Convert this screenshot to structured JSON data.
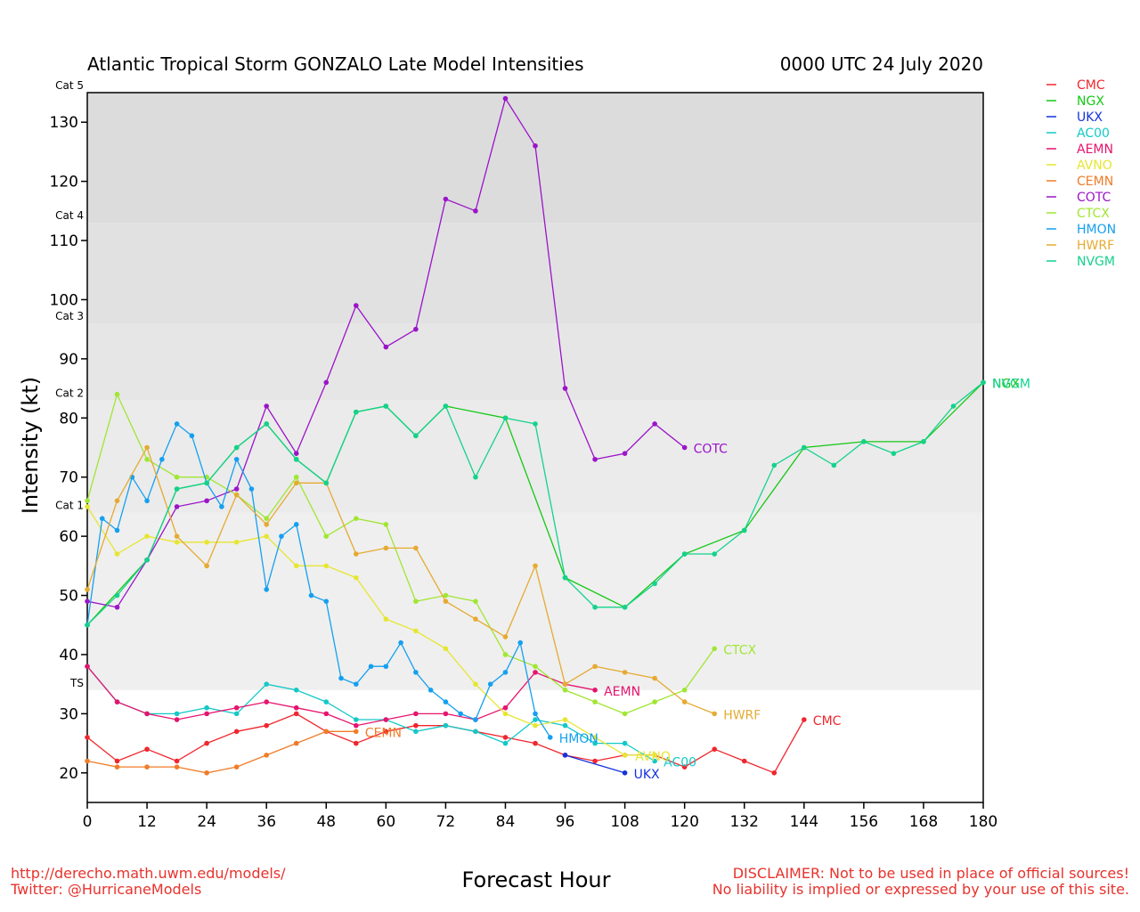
{
  "title_left": "Atlantic Tropical Storm GONZALO Late Model Intensities",
  "title_right": "0000 UTC 24 July 2020",
  "footer": {
    "left_line1": "http://derecho.math.uwm.edu/models/",
    "left_line2": "Twitter: @HurricaneModels",
    "right_line1": "DISCLAIMER: Not to be used in place of official sources!",
    "right_line2": "No liability is implied or expressed by your use of this site."
  },
  "chart_data": {
    "type": "line",
    "xlabel": "Forecast Hour",
    "ylabel": "Intensity (kt)",
    "xlim": [
      0,
      180
    ],
    "ylim": [
      15,
      135
    ],
    "xticks": [
      0,
      12,
      24,
      36,
      48,
      60,
      72,
      84,
      96,
      108,
      120,
      132,
      144,
      156,
      168,
      180
    ],
    "yticks": [
      20,
      30,
      40,
      50,
      60,
      70,
      80,
      90,
      100,
      110,
      120,
      130
    ],
    "legend_position": "outside-right",
    "categories": [
      {
        "label": "TS",
        "from": 34,
        "to": 64,
        "color": "#efefef"
      },
      {
        "label": "Cat 1",
        "from": 64,
        "to": 83,
        "color": "#ebebeb"
      },
      {
        "label": "Cat 2",
        "from": 83,
        "to": 96,
        "color": "#e6e6e6"
      },
      {
        "label": "Cat 3",
        "from": 96,
        "to": 113,
        "color": "#e1e1e1"
      },
      {
        "label": "Cat 4",
        "from": 113,
        "to": 135,
        "color": "#dcdcdc"
      },
      {
        "label": "Cat 5",
        "from": 135,
        "to": 135,
        "color": "#dcdcdc"
      }
    ],
    "series": [
      {
        "name": "CMC",
        "color": "#f0262e",
        "end_label": "CMC",
        "points": [
          [
            0,
            26
          ],
          [
            6,
            22
          ],
          [
            12,
            24
          ],
          [
            18,
            22
          ],
          [
            24,
            25
          ],
          [
            30,
            27
          ],
          [
            36,
            28
          ],
          [
            42,
            30
          ],
          [
            48,
            27
          ],
          [
            54,
            25
          ],
          [
            60,
            27
          ],
          [
            66,
            28
          ],
          [
            72,
            28
          ],
          [
            78,
            27
          ],
          [
            84,
            26
          ],
          [
            90,
            25
          ],
          [
            96,
            23
          ],
          [
            102,
            22
          ],
          [
            108,
            23
          ],
          [
            114,
            23
          ],
          [
            120,
            21
          ],
          [
            126,
            24
          ],
          [
            132,
            22
          ],
          [
            138,
            20
          ],
          [
            144,
            29
          ]
        ]
      },
      {
        "name": "NGX",
        "color": "#14c814",
        "end_label": "NGX",
        "points": [
          [
            0,
            45
          ],
          [
            12,
            56
          ],
          [
            18,
            68
          ],
          [
            24,
            69
          ],
          [
            30,
            75
          ],
          [
            36,
            79
          ],
          [
            42,
            73
          ],
          [
            48,
            69
          ],
          [
            54,
            81
          ],
          [
            60,
            82
          ],
          [
            66,
            77
          ],
          [
            72,
            82
          ],
          [
            84,
            80
          ],
          [
            96,
            53
          ],
          [
            108,
            48
          ],
          [
            120,
            57
          ],
          [
            132,
            61
          ],
          [
            144,
            75
          ],
          [
            156,
            76
          ],
          [
            168,
            76
          ],
          [
            180,
            86
          ]
        ]
      },
      {
        "name": "UKX",
        "color": "#1432dc",
        "end_label": "UKX",
        "points": [
          [
            96,
            23
          ],
          [
            108,
            20
          ]
        ]
      },
      {
        "name": "AC00",
        "color": "#14c8c8",
        "end_label": "AC00",
        "points": [
          [
            0,
            38
          ],
          [
            6,
            32
          ],
          [
            12,
            30
          ],
          [
            18,
            30
          ],
          [
            24,
            31
          ],
          [
            30,
            30
          ],
          [
            36,
            35
          ],
          [
            42,
            34
          ],
          [
            48,
            32
          ],
          [
            54,
            29
          ],
          [
            60,
            29
          ],
          [
            66,
            27
          ],
          [
            72,
            28
          ],
          [
            78,
            27
          ],
          [
            84,
            25
          ],
          [
            90,
            29
          ],
          [
            96,
            28
          ],
          [
            102,
            25
          ],
          [
            108,
            25
          ],
          [
            114,
            22
          ]
        ]
      },
      {
        "name": "AEMN",
        "color": "#e6146e",
        "end_label": "AEMN",
        "points": [
          [
            0,
            38
          ],
          [
            6,
            32
          ],
          [
            12,
            30
          ],
          [
            18,
            29
          ],
          [
            24,
            30
          ],
          [
            30,
            31
          ],
          [
            36,
            32
          ],
          [
            42,
            31
          ],
          [
            48,
            30
          ],
          [
            54,
            28
          ],
          [
            60,
            29
          ],
          [
            66,
            30
          ],
          [
            72,
            30
          ],
          [
            78,
            29
          ],
          [
            84,
            31
          ],
          [
            90,
            37
          ],
          [
            96,
            35
          ],
          [
            102,
            34
          ]
        ]
      },
      {
        "name": "AVNO",
        "color": "#e6e632",
        "end_label": "AVNO",
        "points": [
          [
            0,
            65
          ],
          [
            6,
            57
          ],
          [
            12,
            60
          ],
          [
            18,
            59
          ],
          [
            24,
            59
          ],
          [
            30,
            59
          ],
          [
            36,
            60
          ],
          [
            42,
            55
          ],
          [
            48,
            55
          ],
          [
            54,
            53
          ],
          [
            60,
            46
          ],
          [
            66,
            44
          ],
          [
            72,
            41
          ],
          [
            78,
            35
          ],
          [
            84,
            30
          ],
          [
            90,
            28
          ],
          [
            96,
            29
          ],
          [
            102,
            26
          ],
          [
            108,
            23
          ],
          [
            114,
            23
          ]
        ]
      },
      {
        "name": "CEMN",
        "color": "#f07c28",
        "end_label": "CEMN",
        "points": [
          [
            0,
            22
          ],
          [
            6,
            21
          ],
          [
            12,
            21
          ],
          [
            18,
            21
          ],
          [
            24,
            20
          ],
          [
            30,
            21
          ],
          [
            36,
            23
          ],
          [
            42,
            25
          ],
          [
            48,
            27
          ],
          [
            54,
            27
          ]
        ]
      },
      {
        "name": "COTC",
        "color": "#9b14c8",
        "end_label": "COTC",
        "points": [
          [
            0,
            49
          ],
          [
            6,
            48
          ],
          [
            12,
            56
          ],
          [
            18,
            65
          ],
          [
            24,
            66
          ],
          [
            30,
            68
          ],
          [
            36,
            82
          ],
          [
            42,
            74
          ],
          [
            48,
            86
          ],
          [
            54,
            99
          ],
          [
            60,
            92
          ],
          [
            66,
            95
          ],
          [
            72,
            117
          ],
          [
            78,
            115
          ],
          [
            84,
            134
          ],
          [
            90,
            126
          ],
          [
            96,
            85
          ],
          [
            102,
            73
          ],
          [
            108,
            74
          ],
          [
            114,
            79
          ],
          [
            120,
            75
          ]
        ]
      },
      {
        "name": "CTCX",
        "color": "#a0e632",
        "end_label": "CTCX",
        "points": [
          [
            0,
            66
          ],
          [
            6,
            84
          ],
          [
            12,
            73
          ],
          [
            18,
            70
          ],
          [
            24,
            70
          ],
          [
            30,
            67
          ],
          [
            36,
            63
          ],
          [
            42,
            70
          ],
          [
            48,
            60
          ],
          [
            54,
            63
          ],
          [
            60,
            62
          ],
          [
            66,
            49
          ],
          [
            72,
            50
          ],
          [
            78,
            49
          ],
          [
            84,
            40
          ],
          [
            90,
            38
          ],
          [
            96,
            34
          ],
          [
            102,
            32
          ],
          [
            108,
            30
          ],
          [
            114,
            32
          ],
          [
            120,
            34
          ],
          [
            126,
            41
          ]
        ]
      },
      {
        "name": "HMON",
        "color": "#14a0f0",
        "end_label": "HMON",
        "points": [
          [
            0,
            45
          ],
          [
            3,
            63
          ],
          [
            6,
            61
          ],
          [
            9,
            70
          ],
          [
            12,
            66
          ],
          [
            15,
            73
          ],
          [
            18,
            79
          ],
          [
            21,
            77
          ],
          [
            24,
            69
          ],
          [
            27,
            65
          ],
          [
            30,
            73
          ],
          [
            33,
            68
          ],
          [
            36,
            51
          ],
          [
            39,
            60
          ],
          [
            42,
            62
          ],
          [
            45,
            50
          ],
          [
            48,
            49
          ],
          [
            51,
            36
          ],
          [
            54,
            35
          ],
          [
            57,
            38
          ],
          [
            60,
            38
          ],
          [
            63,
            42
          ],
          [
            66,
            37
          ],
          [
            69,
            34
          ],
          [
            72,
            32
          ],
          [
            75,
            30
          ],
          [
            78,
            29
          ],
          [
            81,
            35
          ],
          [
            84,
            37
          ],
          [
            87,
            42
          ],
          [
            90,
            30
          ],
          [
            93,
            26
          ]
        ]
      },
      {
        "name": "HWRF",
        "color": "#e6aa32",
        "end_label": "HWRF",
        "points": [
          [
            0,
            51
          ],
          [
            6,
            66
          ],
          [
            12,
            75
          ],
          [
            18,
            60
          ],
          [
            24,
            55
          ],
          [
            30,
            67
          ],
          [
            36,
            62
          ],
          [
            42,
            69
          ],
          [
            48,
            69
          ],
          [
            54,
            57
          ],
          [
            60,
            58
          ],
          [
            66,
            58
          ],
          [
            72,
            49
          ],
          [
            78,
            46
          ],
          [
            84,
            43
          ],
          [
            90,
            55
          ],
          [
            96,
            35
          ],
          [
            102,
            38
          ],
          [
            108,
            37
          ],
          [
            114,
            36
          ],
          [
            120,
            32
          ],
          [
            126,
            30
          ]
        ]
      },
      {
        "name": "NVGM",
        "color": "#14d28c",
        "end_label": "NVGM",
        "points": [
          [
            0,
            45
          ],
          [
            6,
            50
          ],
          [
            12,
            56
          ],
          [
            18,
            68
          ],
          [
            24,
            69
          ],
          [
            30,
            75
          ],
          [
            36,
            79
          ],
          [
            42,
            73
          ],
          [
            48,
            69
          ],
          [
            54,
            81
          ],
          [
            60,
            82
          ],
          [
            66,
            77
          ],
          [
            72,
            82
          ],
          [
            78,
            70
          ],
          [
            84,
            80
          ],
          [
            90,
            79
          ],
          [
            96,
            53
          ],
          [
            102,
            48
          ],
          [
            108,
            48
          ],
          [
            114,
            52
          ],
          [
            120,
            57
          ],
          [
            126,
            57
          ],
          [
            132,
            61
          ],
          [
            138,
            72
          ],
          [
            144,
            75
          ],
          [
            150,
            72
          ],
          [
            156,
            76
          ],
          [
            162,
            74
          ],
          [
            168,
            76
          ],
          [
            174,
            82
          ],
          [
            180,
            86
          ]
        ]
      }
    ]
  }
}
